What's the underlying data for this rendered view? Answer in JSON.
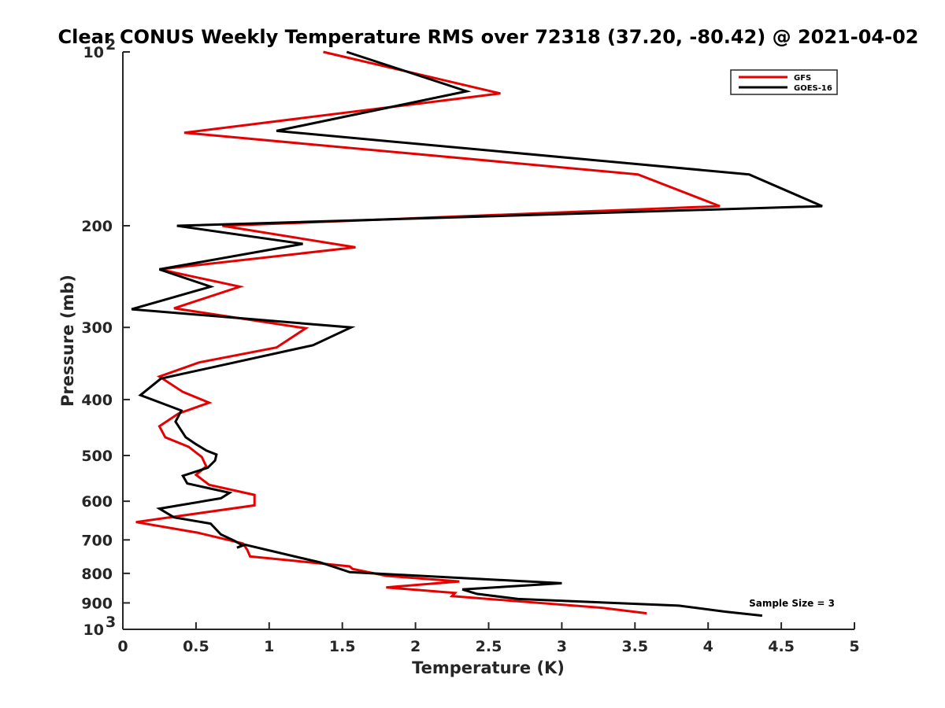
{
  "chart_data": {
    "type": "line",
    "title": "Clear CONUS Weekly Temperature RMS over 72318 (37.20, -80.42) @ 2021-04-02",
    "xlabel": "Temperature (K)",
    "ylabel": "Pressure (mb)",
    "xlim": [
      0,
      5
    ],
    "ylim": [
      100,
      1000
    ],
    "y_scale": "log",
    "y_reversed": true,
    "grid": false,
    "legend_position": "top-right",
    "annotation": "Sample Size = 3",
    "x_ticks": [
      {
        "value": 0,
        "label": "0"
      },
      {
        "value": 0.5,
        "label": "0.5"
      },
      {
        "value": 1,
        "label": "1"
      },
      {
        "value": 1.5,
        "label": "1.5"
      },
      {
        "value": 2,
        "label": "2"
      },
      {
        "value": 2.5,
        "label": "2.5"
      },
      {
        "value": 3,
        "label": "3"
      },
      {
        "value": 3.5,
        "label": "3.5"
      },
      {
        "value": 4,
        "label": "4"
      },
      {
        "value": 4.5,
        "label": "4.5"
      },
      {
        "value": 5,
        "label": "5"
      }
    ],
    "y_ticks": [
      {
        "value": 100,
        "label": "10",
        "sup": "2"
      },
      {
        "value": 200,
        "label": "200",
        "sup": ""
      },
      {
        "value": 300,
        "label": "300",
        "sup": ""
      },
      {
        "value": 400,
        "label": "400",
        "sup": ""
      },
      {
        "value": 500,
        "label": "500",
        "sup": ""
      },
      {
        "value": 600,
        "label": "600",
        "sup": ""
      },
      {
        "value": 700,
        "label": "700",
        "sup": ""
      },
      {
        "value": 800,
        "label": "800",
        "sup": ""
      },
      {
        "value": 900,
        "label": "900",
        "sup": ""
      },
      {
        "value": 1000,
        "label": "10",
        "sup": "3"
      }
    ],
    "series": [
      {
        "name": "GFS",
        "color": "#e60000",
        "points": [
          [
            1.37,
            100
          ],
          [
            2.58,
            118
          ],
          [
            0.42,
            138
          ],
          [
            3.52,
            163
          ],
          [
            4.08,
            185
          ],
          [
            0.68,
            200
          ],
          [
            1.59,
            218
          ],
          [
            0.25,
            238
          ],
          [
            0.8,
            255
          ],
          [
            0.35,
            278
          ],
          [
            1.25,
            301
          ],
          [
            1.05,
            325
          ],
          [
            0.52,
            345
          ],
          [
            0.25,
            365
          ],
          [
            0.41,
            388
          ],
          [
            0.59,
            405
          ],
          [
            0.38,
            423
          ],
          [
            0.25,
            445
          ],
          [
            0.29,
            465
          ],
          [
            0.45,
            483
          ],
          [
            0.54,
            503
          ],
          [
            0.57,
            522
          ],
          [
            0.5,
            540
          ],
          [
            0.59,
            562
          ],
          [
            0.9,
            585
          ],
          [
            0.9,
            610
          ],
          [
            0.09,
            652
          ],
          [
            0.51,
            680
          ],
          [
            0.82,
            710
          ],
          [
            0.85,
            728
          ],
          [
            0.87,
            748
          ],
          [
            1.2,
            762
          ],
          [
            1.55,
            778
          ],
          [
            1.57,
            786
          ],
          [
            1.8,
            808
          ],
          [
            2.3,
            826
          ],
          [
            1.8,
            846
          ],
          [
            2.27,
            865
          ],
          [
            2.25,
            876
          ],
          [
            3.28,
            918
          ],
          [
            3.58,
            938
          ]
        ]
      },
      {
        "name": "GOES-16",
        "color": "#000000",
        "points": [
          [
            1.53,
            100
          ],
          [
            2.35,
            117
          ],
          [
            1.05,
            137
          ],
          [
            4.28,
            163
          ],
          [
            4.78,
            185
          ],
          [
            0.37,
            200
          ],
          [
            1.23,
            215
          ],
          [
            0.25,
            238
          ],
          [
            0.6,
            255
          ],
          [
            0.06,
            279
          ],
          [
            1.56,
            300
          ],
          [
            1.3,
            322
          ],
          [
            0.26,
            368
          ],
          [
            0.12,
            393
          ],
          [
            0.4,
            418
          ],
          [
            0.36,
            437
          ],
          [
            0.43,
            465
          ],
          [
            0.5,
            478
          ],
          [
            0.57,
            490
          ],
          [
            0.64,
            498
          ],
          [
            0.63,
            510
          ],
          [
            0.58,
            525
          ],
          [
            0.41,
            542
          ],
          [
            0.44,
            559
          ],
          [
            0.73,
            580
          ],
          [
            0.67,
            593
          ],
          [
            0.25,
            618
          ],
          [
            0.35,
            640
          ],
          [
            0.6,
            656
          ],
          [
            0.67,
            685
          ],
          [
            0.76,
            702
          ],
          [
            0.82,
            716
          ],
          [
            0.78,
            722
          ],
          [
            0.83,
            713
          ],
          [
            1.35,
            766
          ],
          [
            1.55,
            796
          ],
          [
            3.0,
            832
          ],
          [
            2.32,
            853
          ],
          [
            2.42,
            868
          ],
          [
            2.7,
            886
          ],
          [
            3.8,
            910
          ],
          [
            4.12,
            932
          ],
          [
            4.37,
            947
          ]
        ]
      }
    ]
  }
}
